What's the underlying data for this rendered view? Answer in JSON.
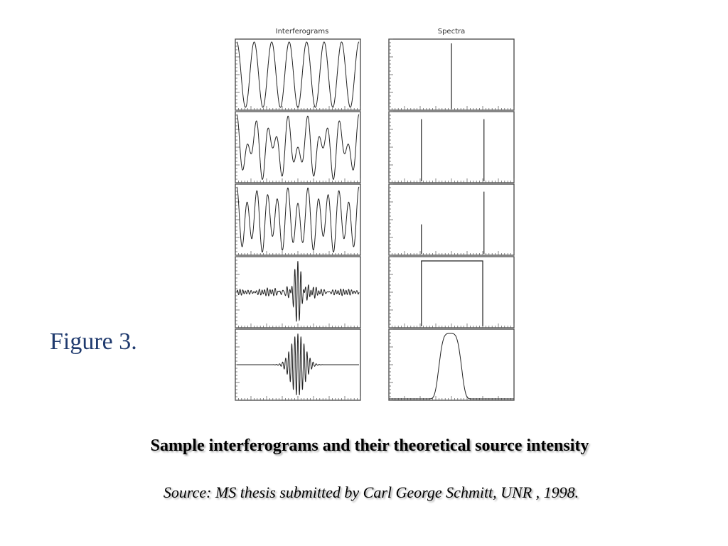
{
  "figure": {
    "left_title": "Interferograms",
    "right_title": "Spectra"
  },
  "label": "Figure 3.",
  "caption": "Sample interferograms and their theoretical source intensity",
  "source": "Source: MS thesis submitted by Carl George Schmitt, UNR , 1998."
}
